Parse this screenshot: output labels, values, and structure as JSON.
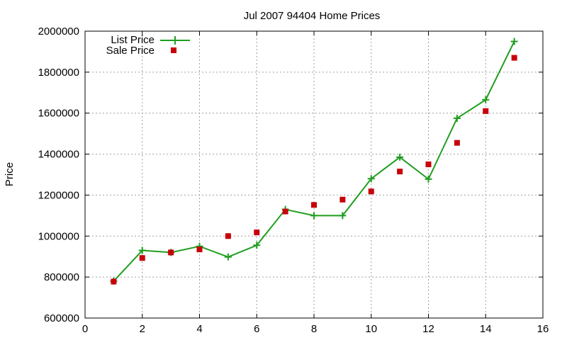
{
  "chart_data": {
    "type": "line",
    "title": "Jul 2007 94404 Home Prices",
    "xlabel": "",
    "ylabel": "Price",
    "xlim": [
      0,
      16
    ],
    "ylim": [
      600000,
      2000000
    ],
    "x_ticks": [
      0,
      2,
      4,
      6,
      8,
      10,
      12,
      14,
      16
    ],
    "y_ticks": [
      600000,
      800000,
      1000000,
      1200000,
      1400000,
      1600000,
      1800000,
      2000000
    ],
    "grid": true,
    "legend_position": "top-left",
    "series": [
      {
        "name": "List Price",
        "style": "line-with-plus-markers",
        "color": "#1f9e1f",
        "x": [
          1,
          2,
          3,
          4,
          5,
          6,
          7,
          8,
          9,
          10,
          11,
          12,
          13,
          14,
          15
        ],
        "y": [
          780000,
          930000,
          920000,
          950000,
          898000,
          955000,
          1130000,
          1100000,
          1100000,
          1280000,
          1385000,
          1278000,
          1575000,
          1665000,
          1950000
        ]
      },
      {
        "name": "Sale Price",
        "style": "square-markers",
        "color": "#c8000a",
        "x": [
          1,
          2,
          3,
          4,
          5,
          6,
          7,
          8,
          9,
          10,
          11,
          12,
          13,
          14,
          15
        ],
        "y": [
          778000,
          893000,
          920000,
          935000,
          1000000,
          1018000,
          1120000,
          1152000,
          1178000,
          1218000,
          1315000,
          1350000,
          1455000,
          1610000,
          1870000
        ]
      }
    ]
  }
}
